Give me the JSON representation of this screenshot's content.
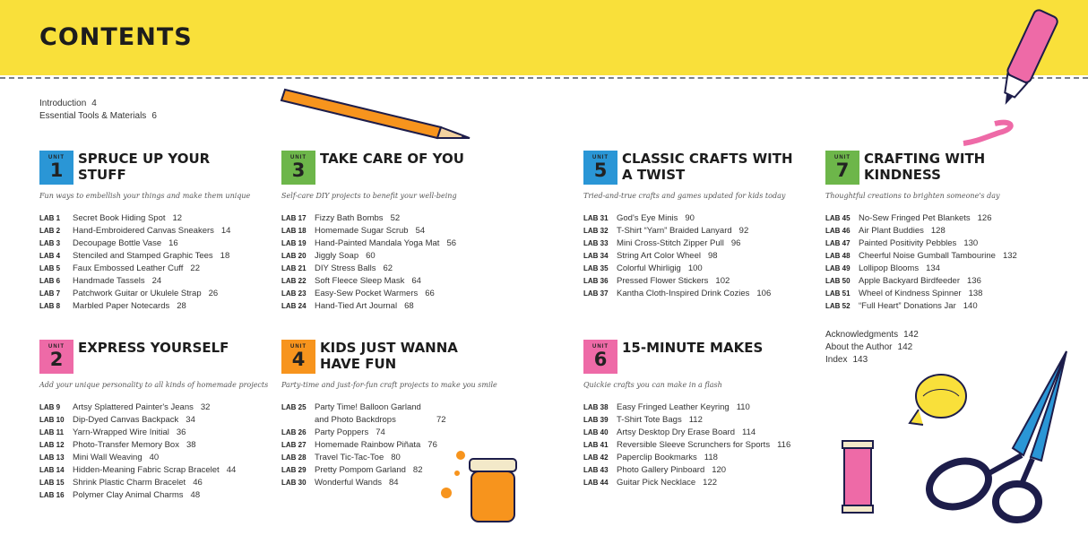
{
  "title": "CONTENTS",
  "unit_word": "UNIT",
  "front_matter": [
    {
      "label": "Introduction",
      "page": "4"
    },
    {
      "label": "Essential Tools & Materials",
      "page": "6"
    }
  ],
  "back_matter": [
    {
      "label": "Acknowledgments",
      "page": "142"
    },
    {
      "label": "About the Author",
      "page": "142"
    },
    {
      "label": "Index",
      "page": "143"
    }
  ],
  "colors": {
    "header": "#f9e03a",
    "blue": "#2a96d6",
    "green": "#6db64a",
    "pink": "#ee6aa7",
    "orange": "#f7941d"
  },
  "units": [
    {
      "num": "1",
      "title": "SPRUCE UP YOUR STUFF",
      "color": "#2a96d6",
      "tagline": "Fun ways to embellish your things and make them unique",
      "labs": [
        {
          "lab": "LAB 1",
          "t": "Secret Book Hiding Spot",
          "p": "12"
        },
        {
          "lab": "LAB 2",
          "t": "Hand-Embroidered Canvas Sneakers",
          "p": "14"
        },
        {
          "lab": "LAB 3",
          "t": "Decoupage Bottle Vase",
          "p": "16"
        },
        {
          "lab": "LAB 4",
          "t": "Stenciled and Stamped Graphic Tees",
          "p": "18"
        },
        {
          "lab": "LAB 5",
          "t": "Faux Embossed Leather Cuff",
          "p": "22"
        },
        {
          "lab": "LAB 6",
          "t": "Handmade Tassels",
          "p": "24"
        },
        {
          "lab": "LAB 7",
          "t": "Patchwork Guitar or Ukulele Strap",
          "p": "26"
        },
        {
          "lab": "LAB 8",
          "t": "Marbled Paper Notecards",
          "p": "28"
        }
      ]
    },
    {
      "num": "2",
      "title": "EXPRESS YOURSELF",
      "color": "#ee6aa7",
      "tagline": "Add your unique personality to all kinds of homemade projects",
      "labs": [
        {
          "lab": "LAB 9",
          "t": "Artsy Splattered Painter's Jeans",
          "p": "32"
        },
        {
          "lab": "LAB 10",
          "t": "Dip-Dyed Canvas Backpack",
          "p": "34"
        },
        {
          "lab": "LAB 11",
          "t": "Yarn-Wrapped Wire Initial",
          "p": "36"
        },
        {
          "lab": "LAB 12",
          "t": "Photo-Transfer Memory Box",
          "p": "38"
        },
        {
          "lab": "LAB 13",
          "t": "Mini Wall Weaving",
          "p": "40"
        },
        {
          "lab": "LAB 14",
          "t": "Hidden-Meaning Fabric Scrap Bracelet",
          "p": "44"
        },
        {
          "lab": "LAB 15",
          "t": "Shrink Plastic Charm Bracelet",
          "p": "46"
        },
        {
          "lab": "LAB 16",
          "t": "Polymer Clay Animal Charms",
          "p": "48"
        }
      ]
    },
    {
      "num": "3",
      "title": "TAKE CARE OF YOU",
      "color": "#6db64a",
      "tagline": "Self-care DIY projects to benefit your well-being",
      "labs": [
        {
          "lab": "LAB 17",
          "t": "Fizzy Bath Bombs",
          "p": "52"
        },
        {
          "lab": "LAB 18",
          "t": "Homemade Sugar Scrub",
          "p": "54"
        },
        {
          "lab": "LAB 19",
          "t": "Hand-Painted Mandala Yoga Mat",
          "p": "56"
        },
        {
          "lab": "LAB 20",
          "t": "Jiggly Soap",
          "p": "60"
        },
        {
          "lab": "LAB 21",
          "t": "DIY Stress Balls",
          "p": "62"
        },
        {
          "lab": "LAB 22",
          "t": "Soft Fleece Sleep Mask",
          "p": "64"
        },
        {
          "lab": "LAB 23",
          "t": "Easy-Sew Pocket Warmers",
          "p": "66"
        },
        {
          "lab": "LAB 24",
          "t": "Hand-Tied Art Journal",
          "p": "68"
        }
      ]
    },
    {
      "num": "4",
      "title": "KIDS JUST WANNA HAVE FUN",
      "color": "#f7941d",
      "tagline": "Party-time and just-for-fun craft projects to make you smile",
      "labs": [
        {
          "lab": "LAB 25",
          "t": "Party Time! Balloon Garland and Photo Backdrops",
          "p": "72"
        },
        {
          "lab": "LAB 26",
          "t": "Party Poppers",
          "p": "74"
        },
        {
          "lab": "LAB 27",
          "t": "Homemade Rainbow Piñata",
          "p": "76"
        },
        {
          "lab": "LAB 28",
          "t": "Travel Tic-Tac-Toe",
          "p": "80"
        },
        {
          "lab": "LAB 29",
          "t": "Pretty Pompom Garland",
          "p": "82"
        },
        {
          "lab": "LAB 30",
          "t": "Wonderful Wands",
          "p": "84"
        }
      ]
    },
    {
      "num": "5",
      "title": "CLASSIC CRAFTS WITH A TWIST",
      "color": "#2a96d6",
      "tagline": "Tried-and-true crafts and games updated for kids today",
      "labs": [
        {
          "lab": "LAB 31",
          "t": "God's Eye Minis",
          "p": "90"
        },
        {
          "lab": "LAB 32",
          "t": "T-Shirt “Yarn” Braided Lanyard",
          "p": "92"
        },
        {
          "lab": "LAB 33",
          "t": "Mini Cross-Stitch Zipper Pull",
          "p": "96"
        },
        {
          "lab": "LAB 34",
          "t": "String Art Color Wheel",
          "p": "98"
        },
        {
          "lab": "LAB 35",
          "t": "Colorful Whirligig",
          "p": "100"
        },
        {
          "lab": "LAB 36",
          "t": "Pressed Flower Stickers",
          "p": "102"
        },
        {
          "lab": "LAB 37",
          "t": "Kantha Cloth-Inspired Drink Cozies",
          "p": "106"
        }
      ]
    },
    {
      "num": "6",
      "title": "15-MINUTE MAKES",
      "color": "#ee6aa7",
      "tagline": "Quickie crafts you can make in a flash",
      "labs": [
        {
          "lab": "LAB 38",
          "t": "Easy Fringed Leather Keyring",
          "p": "110"
        },
        {
          "lab": "LAB 39",
          "t": "T-Shirt Tote Bags",
          "p": "112"
        },
        {
          "lab": "LAB 40",
          "t": "Artsy Desktop Dry Erase Board",
          "p": "114"
        },
        {
          "lab": "LAB 41",
          "t": "Reversible Sleeve Scrunchers for Sports",
          "p": "116"
        },
        {
          "lab": "LAB 42",
          "t": "Paperclip Bookmarks",
          "p": "118"
        },
        {
          "lab": "LAB 43",
          "t": "Photo Gallery Pinboard",
          "p": "120"
        },
        {
          "lab": "LAB 44",
          "t": "Guitar Pick Necklace",
          "p": "122"
        }
      ]
    },
    {
      "num": "7",
      "title": "CRAFTING WITH KINDNESS",
      "color": "#6db64a",
      "tagline": "Thoughtful creations to brighten someone's day",
      "labs": [
        {
          "lab": "LAB 45",
          "t": "No-Sew Fringed Pet Blankets",
          "p": "126"
        },
        {
          "lab": "LAB 46",
          "t": "Air Plant Buddies",
          "p": "128"
        },
        {
          "lab": "LAB 47",
          "t": "Painted Positivity Pebbles",
          "p": "130"
        },
        {
          "lab": "LAB 48",
          "t": "Cheerful Noise Gumball Tambourine",
          "p": "132"
        },
        {
          "lab": "LAB 49",
          "t": "Lollipop Blooms",
          "p": "134"
        },
        {
          "lab": "LAB 50",
          "t": "Apple Backyard Birdfeeder",
          "p": "136"
        },
        {
          "lab": "LAB 51",
          "t": "Wheel of Kindness Spinner",
          "p": "138"
        },
        {
          "lab": "LAB 52",
          "t": "“Full Heart” Donations Jar",
          "p": "140"
        }
      ]
    }
  ]
}
